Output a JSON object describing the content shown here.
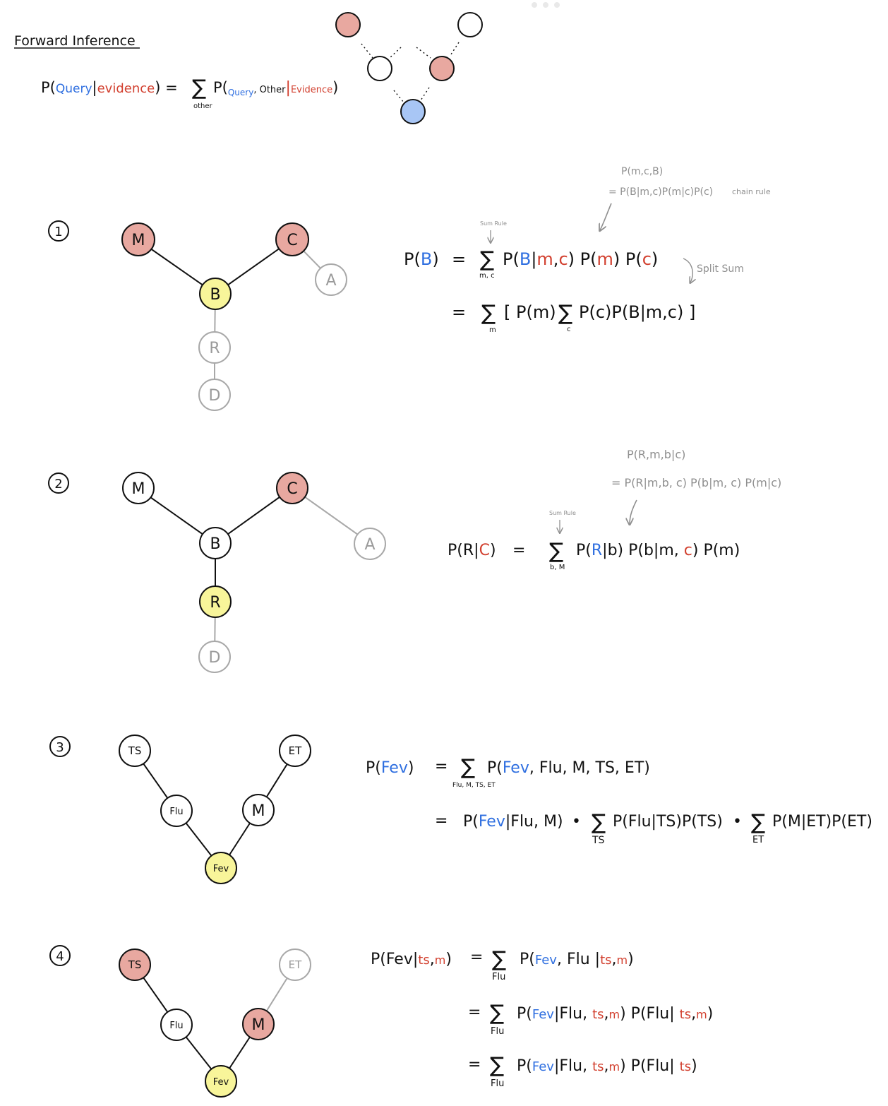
{
  "title": "Forward Inference",
  "header_formula": {
    "lhs": [
      "P(",
      "Query",
      "|",
      "evidence",
      ") ="
    ],
    "sum_sub": "other",
    "rhs": [
      "P(",
      "Query",
      ", Other",
      "|",
      "Evidence",
      ")"
    ]
  },
  "colors": {
    "evidence": "#e8a8a0",
    "query": "#a8c6f5",
    "target": "#f8f59a",
    "plain": "#ffffff",
    "blue_text": "#2f6fe0",
    "red_text": "#d2402f",
    "gray": "#9a9a9a"
  },
  "sections": [
    {
      "number": "1",
      "nodes": [
        {
          "label": "M",
          "state": "evidence"
        },
        {
          "label": "C",
          "state": "evidence"
        },
        {
          "label": "A",
          "state": "faded"
        },
        {
          "label": "B",
          "state": "target"
        },
        {
          "label": "R",
          "state": "faded"
        },
        {
          "label": "D",
          "state": "faded"
        }
      ],
      "annotations": {
        "chain_top": "P(m,c,B)",
        "chain_bottom": "= P(B|m,c)P(m|c)P(c)",
        "chain_label": "chain rule",
        "sum_rule": "Sum Rule",
        "split_sum": "Split Sum"
      },
      "eq1": {
        "lhs_pre": "P(",
        "lhs_var": "B",
        "lhs_post": ")",
        "eq": "=",
        "sub": "m, c",
        "t1": "P(",
        "t2": "B",
        "t3": "|",
        "t4": "m",
        "t5": ",",
        "t6": "c",
        "t7": ") P(",
        "t8": "m",
        "t9": ") P(",
        "t10": "c",
        "t11": ")"
      },
      "eq2": {
        "eq": "=",
        "sub1": "m",
        "body1": "[ P(m)",
        "sub2": "c",
        "body2": "P(c)P(B|m,c) ]"
      }
    },
    {
      "number": "2",
      "nodes": [
        {
          "label": "M",
          "state": "plain"
        },
        {
          "label": "C",
          "state": "evidence"
        },
        {
          "label": "A",
          "state": "faded"
        },
        {
          "label": "B",
          "state": "plain"
        },
        {
          "label": "R",
          "state": "target"
        },
        {
          "label": "D",
          "state": "faded"
        }
      ],
      "annotations": {
        "chain_top": "P(R,m,b|c)",
        "chain_bottom": "= P(R|m,b, c) P(b|m, c) P(m|c)",
        "sum_rule": "Sum Rule"
      },
      "eq1": {
        "lhs_pre": "P(R|",
        "lhs_var": "C",
        "lhs_post": ")",
        "eq": "=",
        "sub": "b, M",
        "t1": "P(",
        "t2": "R",
        "t3": "|b) P(b|m, ",
        "t4": "c",
        "t5": ") P(m)"
      }
    },
    {
      "number": "3",
      "nodes": [
        {
          "label": "TS",
          "state": "plain"
        },
        {
          "label": "ET",
          "state": "plain"
        },
        {
          "label": "Flu",
          "state": "plain"
        },
        {
          "label": "M",
          "state": "plain"
        },
        {
          "label": "Fev",
          "state": "target"
        }
      ],
      "eq1": {
        "lhs_pre": "P(",
        "lhs_var": "Fev",
        "lhs_post": ")",
        "eq": "=",
        "sub": "Flu, M, TS, ET",
        "t1": "P(",
        "t2": "Fev",
        "t3": ", Flu, M, TS, ET)"
      },
      "eq2": {
        "eq": "=",
        "a1": "P(",
        "a2": "Fev",
        "a3": "|Flu, M)",
        "dot": "•",
        "sub1": "TS",
        "b1": "P(Flu|TS)P(TS)",
        "sub2": "ET",
        "c1": "P(M|ET)P(ET)"
      }
    },
    {
      "number": "4",
      "nodes": [
        {
          "label": "TS",
          "state": "evidence"
        },
        {
          "label": "ET",
          "state": "faded"
        },
        {
          "label": "Flu",
          "state": "plain"
        },
        {
          "label": "M",
          "state": "evidence"
        },
        {
          "label": "Fev",
          "state": "target"
        }
      ],
      "eq1": {
        "lhs": [
          "P(Fev|",
          "ts",
          ",",
          "m",
          ")"
        ],
        "eq": "=",
        "sub": "Flu",
        "rhs": [
          "P(",
          "Fev",
          ", Flu |",
          "ts",
          ",",
          "m",
          ")"
        ]
      },
      "eq2": {
        "eq": "=",
        "sub": "Flu",
        "rhs": [
          "P(",
          "Fev",
          "|Flu, ",
          "ts",
          ",",
          "m",
          ") P(Flu| ",
          "ts",
          ",",
          "m",
          ")"
        ]
      },
      "eq3": {
        "eq": "=",
        "sub": "Flu",
        "rhs": [
          "P(",
          "Fev",
          "|Flu, ",
          "ts",
          ",",
          "m",
          ") P(Flu| ",
          "ts",
          ")"
        ]
      }
    }
  ]
}
